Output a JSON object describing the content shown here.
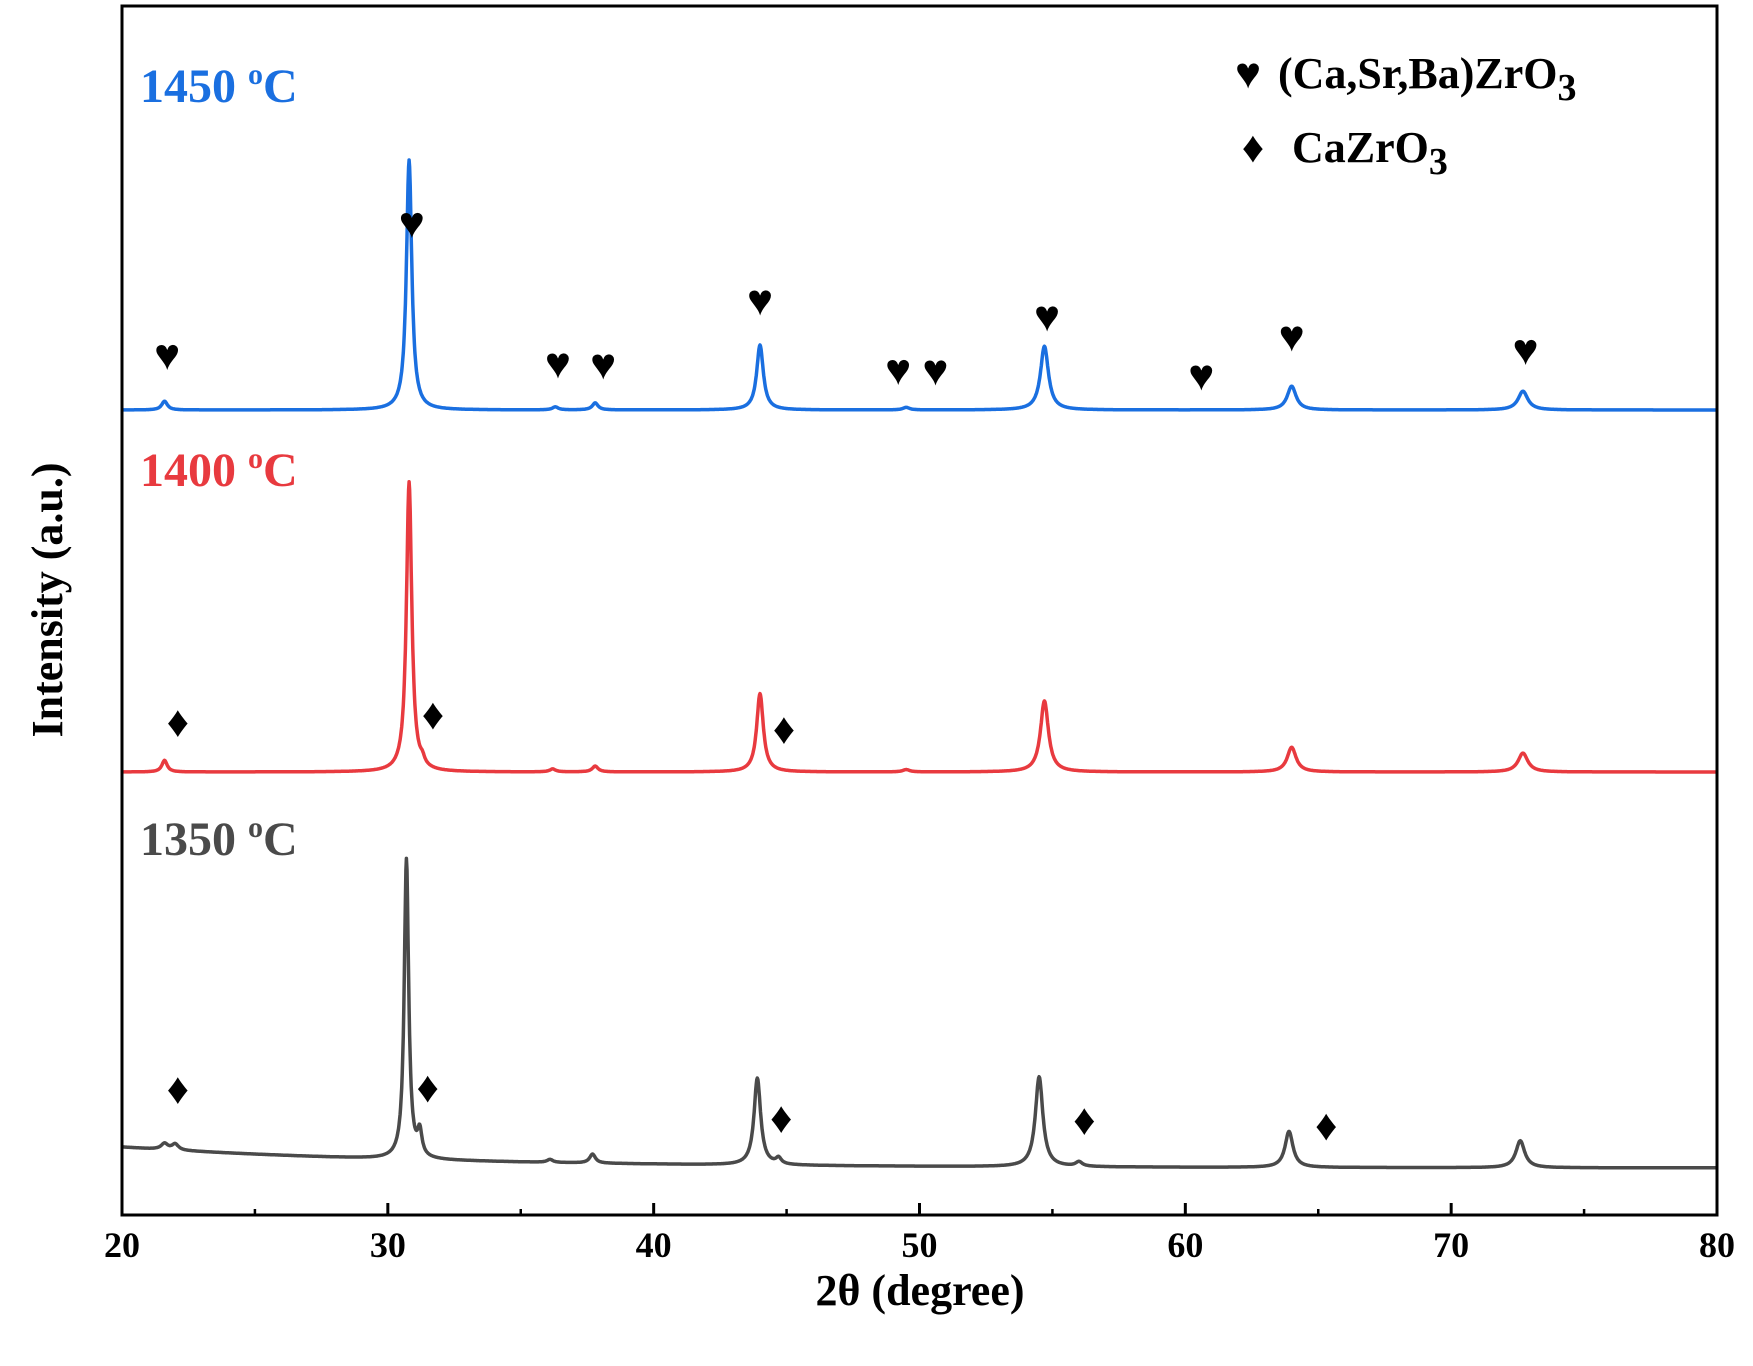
{
  "chart_data": {
    "type": "line",
    "title": "",
    "xlabel": "2θ (degree)",
    "ylabel": "Intensity (a.u.)",
    "xlim": [
      20,
      80
    ],
    "xticks": [
      20,
      30,
      40,
      50,
      60,
      70,
      80
    ],
    "yticks_visible": false,
    "grid": false,
    "legend": {
      "placement": "top-right",
      "entries": [
        {
          "symbol": "heart",
          "glyph": "♥",
          "label": "(Ca,Sr,Ba)ZrO",
          "subscript": "3"
        },
        {
          "symbol": "diamond",
          "glyph": "♦",
          "label": "CaZrO",
          "subscript": "3"
        }
      ]
    },
    "series": [
      {
        "name": "1450 °C",
        "label_main": "1450 ",
        "label_sup": "o",
        "label_unit": "C",
        "color": "#1a6fe0",
        "baseline": 0,
        "peaks": [
          {
            "x": 21.6,
            "h": 0.035,
            "w": 0.13
          },
          {
            "x": 30.8,
            "h": 1.0,
            "w": 0.12
          },
          {
            "x": 36.3,
            "h": 0.012,
            "w": 0.13
          },
          {
            "x": 37.8,
            "h": 0.028,
            "w": 0.13
          },
          {
            "x": 44.0,
            "h": 0.26,
            "w": 0.15
          },
          {
            "x": 49.5,
            "h": 0.01,
            "w": 0.15
          },
          {
            "x": 54.7,
            "h": 0.255,
            "w": 0.18
          },
          {
            "x": 64.0,
            "h": 0.095,
            "w": 0.2
          },
          {
            "x": 72.7,
            "h": 0.075,
            "w": 0.22
          }
        ],
        "markers": [
          {
            "x": 21.7,
            "symbol": "heart",
            "offset": 0.14
          },
          {
            "x": 30.9,
            "symbol": "heart",
            "offset": 0.1
          },
          {
            "x": 36.4,
            "symbol": "heart",
            "offset": 0.12
          },
          {
            "x": 38.1,
            "symbol": "heart",
            "offset": 0.12
          },
          {
            "x": 44.0,
            "symbol": "heart",
            "offset": 0.12
          },
          {
            "x": 49.2,
            "symbol": "heart",
            "offset": 0.1
          },
          {
            "x": 50.6,
            "symbol": "heart",
            "offset": 0.1
          },
          {
            "x": 54.8,
            "symbol": "heart",
            "offset": 0.12
          },
          {
            "x": 60.6,
            "symbol": "heart",
            "offset": 0.08
          },
          {
            "x": 64.0,
            "symbol": "heart",
            "offset": 0.14
          },
          {
            "x": 72.8,
            "symbol": "heart",
            "offset": 0.12
          }
        ]
      },
      {
        "name": "1400 °C",
        "label_main": "1400 ",
        "label_sup": "o",
        "label_unit": "C",
        "color": "#e83a3f",
        "baseline": 0,
        "peaks": [
          {
            "x": 21.6,
            "h": 0.04,
            "w": 0.12
          },
          {
            "x": 30.8,
            "h": 1.0,
            "w": 0.12
          },
          {
            "x": 31.3,
            "h": 0.02,
            "w": 0.1
          },
          {
            "x": 36.2,
            "h": 0.01,
            "w": 0.13
          },
          {
            "x": 37.8,
            "h": 0.02,
            "w": 0.13
          },
          {
            "x": 44.0,
            "h": 0.27,
            "w": 0.15
          },
          {
            "x": 49.5,
            "h": 0.008,
            "w": 0.15
          },
          {
            "x": 54.7,
            "h": 0.245,
            "w": 0.18
          },
          {
            "x": 64.0,
            "h": 0.085,
            "w": 0.2
          },
          {
            "x": 72.7,
            "h": 0.065,
            "w": 0.22
          }
        ],
        "markers": [
          {
            "x": 22.1,
            "symbol": "diamond",
            "offset": 0.12
          },
          {
            "x": 31.7,
            "symbol": "diamond",
            "offset": 0.13
          },
          {
            "x": 44.9,
            "symbol": "diamond",
            "offset": 0.09
          }
        ]
      },
      {
        "name": "1350 °C",
        "label_main": "1350 ",
        "label_sup": "o",
        "label_unit": "C",
        "color": "#4a4a4a",
        "baseline": 0.07,
        "peaks": [
          {
            "x": 21.6,
            "h": 0.02,
            "w": 0.15
          },
          {
            "x": 22.0,
            "h": 0.02,
            "w": 0.15
          },
          {
            "x": 30.7,
            "h": 1.0,
            "w": 0.1
          },
          {
            "x": 31.2,
            "h": 0.08,
            "w": 0.1
          },
          {
            "x": 36.1,
            "h": 0.01,
            "w": 0.13
          },
          {
            "x": 37.7,
            "h": 0.03,
            "w": 0.13
          },
          {
            "x": 43.9,
            "h": 0.29,
            "w": 0.15
          },
          {
            "x": 44.7,
            "h": 0.02,
            "w": 0.12
          },
          {
            "x": 54.5,
            "h": 0.3,
            "w": 0.17
          },
          {
            "x": 56.0,
            "h": 0.015,
            "w": 0.15
          },
          {
            "x": 63.9,
            "h": 0.12,
            "w": 0.18
          },
          {
            "x": 72.6,
            "h": 0.09,
            "w": 0.2
          }
        ],
        "markers": [
          {
            "x": 22.1,
            "symbol": "diamond",
            "offset": 0.14
          },
          {
            "x": 31.5,
            "symbol": "diamond",
            "offset": 0.17
          },
          {
            "x": 44.8,
            "symbol": "diamond",
            "offset": 0.09
          },
          {
            "x": 56.2,
            "symbol": "diamond",
            "offset": 0.1
          },
          {
            "x": 65.3,
            "symbol": "diamond",
            "offset": 0.09
          }
        ]
      }
    ]
  }
}
